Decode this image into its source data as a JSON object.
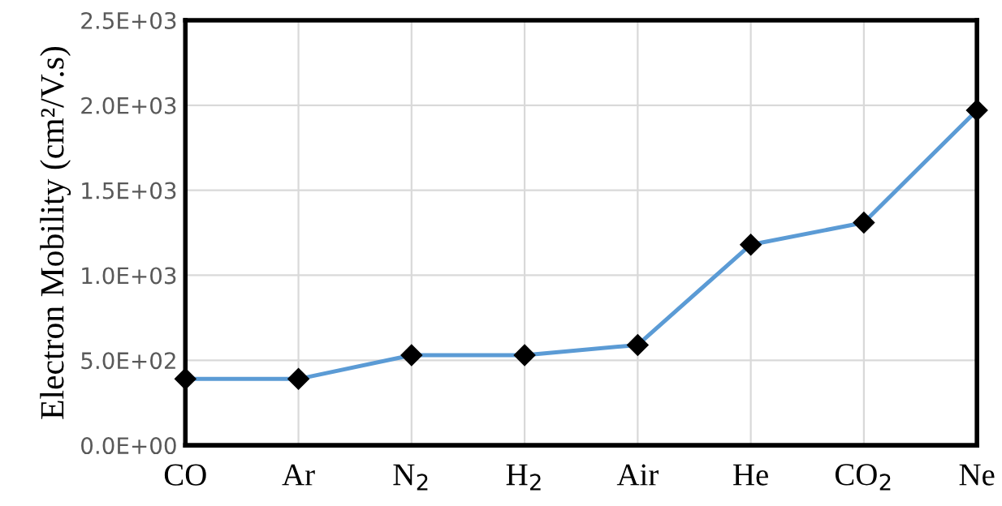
{
  "chart_data": {
    "type": "line",
    "ylabel": "Electron Mobility (cm²/V.s)",
    "categories": [
      "CO",
      "Ar",
      "N$_{2}$",
      "H$_{2}$",
      "Air",
      "He",
      "CO$_{2}$",
      "Ne"
    ],
    "series": [
      {
        "color": "#5b9bd5",
        "values": [
          390,
          390,
          530,
          530,
          590,
          1180,
          1310,
          1970
        ]
      }
    ],
    "ylim": [
      0,
      2500
    ],
    "yticks": [
      {
        "value": 0,
        "label": "0.0E+00"
      },
      {
        "value": 500,
        "label": "5.0E+02"
      },
      {
        "value": 1000,
        "label": "1.0E+03"
      },
      {
        "value": 1500,
        "label": "1.5E+03"
      },
      {
        "value": 2000,
        "label": "2.0E+03"
      },
      {
        "value": 2500,
        "label": "2.5E+03"
      }
    ],
    "grid": true,
    "marker": "diamond",
    "line_style": "solid"
  }
}
